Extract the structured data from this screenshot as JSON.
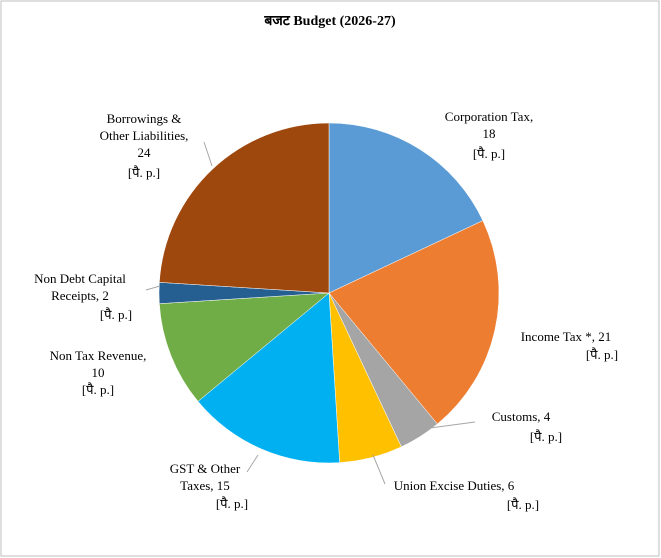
{
  "chart_data": {
    "type": "pie",
    "title": "बजट  Budget  (2026-27)",
    "categories": [
      "Corporation Tax",
      "Income Tax *",
      "Customs",
      "Union Excise Duties",
      "GST & Other Taxes",
      "Non Tax Revenue",
      "Non Debt Capital Receipts",
      "Borrowings & Other Liabilities"
    ],
    "values": [
      18,
      21,
      4,
      6,
      15,
      10,
      2,
      24
    ],
    "value_labels": [
      [
        "Corporation Tax,",
        "18"
      ],
      [
        "Income Tax *, 21"
      ],
      [
        "Customs, 4"
      ],
      [
        "Union Excise Duties, 6"
      ],
      [
        "GST & Other",
        "Taxes, 15"
      ],
      [
        "Non Tax Revenue,",
        "10"
      ],
      [
        "Non Debt Capital",
        "Receipts, 2"
      ],
      [
        "Borrowings &",
        "Other Liabilities,",
        "24"
      ]
    ],
    "unit": "[पै. p.]",
    "colors": [
      "#5b9bd5",
      "#ed7d31",
      "#a5a5a5",
      "#ffc000",
      "#00b0f0",
      "#70ad47",
      "#255e91",
      "#9e480e"
    ]
  }
}
